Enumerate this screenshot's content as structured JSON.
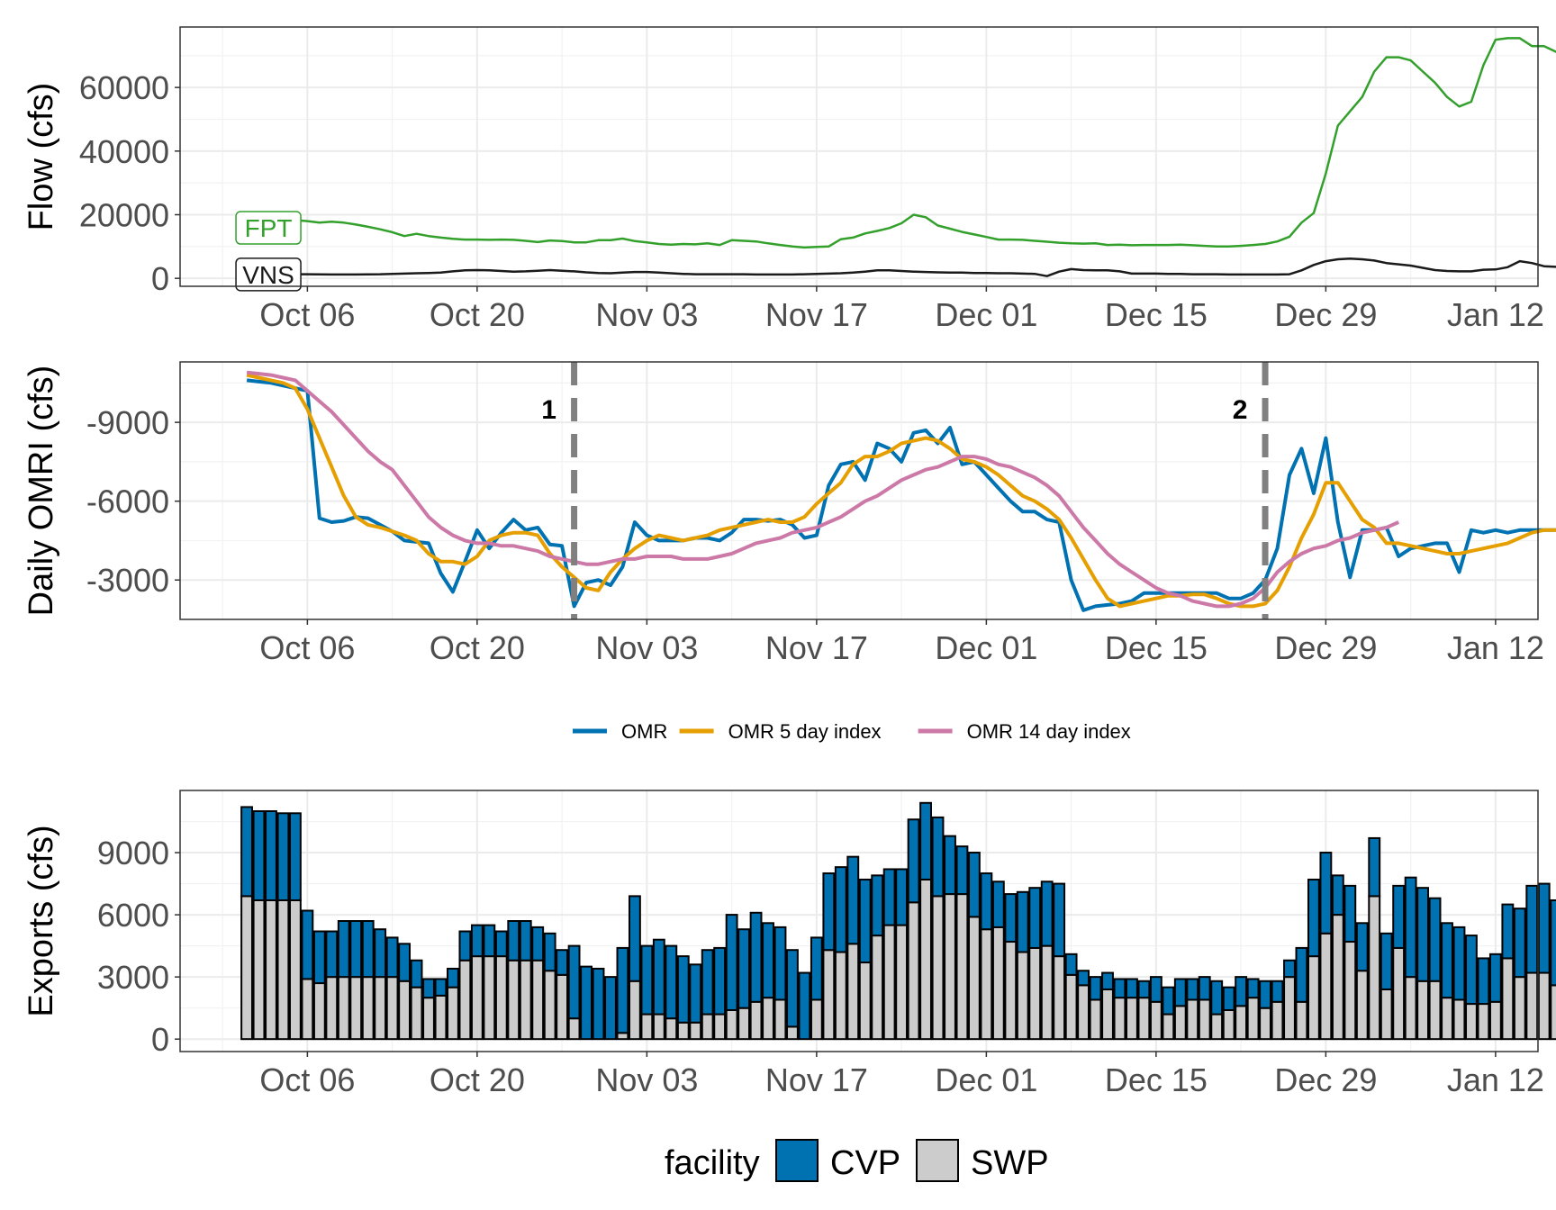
{
  "chart_data": [
    {
      "type": "line",
      "ylabel": "Flow (cfs)",
      "x_ticks": [
        "Oct 06",
        "Oct 20",
        "Nov 03",
        "Nov 17",
        "Dec 01",
        "Dec 15",
        "Dec 29",
        "Jan 12"
      ],
      "x_tick_dates": [
        "2022-10-06",
        "2022-10-20",
        "2022-11-03",
        "2022-11-17",
        "2022-12-01",
        "2022-12-15",
        "2022-12-29",
        "2023-01-12"
      ],
      "ylim": [
        -2500,
        79000
      ],
      "y_ticks": [
        0,
        20000,
        40000,
        60000
      ],
      "x_start": "2022-10-01",
      "grid": true,
      "series": [
        {
          "name": "FPT",
          "color": "#33a02c",
          "values": [
            19000,
            18800,
            18600,
            18500,
            18300,
            18000,
            17500,
            17800,
            17500,
            16900,
            16200,
            15400,
            14500,
            13300,
            14000,
            13300,
            12800,
            12400,
            12200,
            12200,
            12100,
            12200,
            12100,
            11800,
            11400,
            11900,
            11700,
            11300,
            11300,
            12000,
            12000,
            12500,
            11700,
            11300,
            10800,
            10600,
            10800,
            10700,
            11000,
            10500,
            12000,
            11800,
            11600,
            11000,
            10500,
            10000,
            9700,
            9900,
            10000,
            12300,
            12800,
            14100,
            14900,
            15800,
            17300,
            20000,
            19200,
            16600,
            15600,
            14600,
            13800,
            13000,
            12200,
            12200,
            12100,
            11800,
            11500,
            11200,
            11000,
            10900,
            11000,
            10500,
            10600,
            10400,
            10500,
            10500,
            10500,
            10600,
            10400,
            10200,
            10000,
            10000,
            10200,
            10500,
            10800,
            11600,
            13100,
            17500,
            20500,
            33000,
            48000,
            52500,
            57000,
            65000,
            69500,
            69500,
            68500,
            65000,
            61500,
            57000,
            54000,
            55500,
            67000,
            75000,
            75500,
            75500,
            73000,
            73000,
            71200,
            69500
          ]
        },
        {
          "name": "VNS",
          "color": "#1a1a1a",
          "values": [
            1500,
            1450,
            1400,
            1350,
            1300,
            1280,
            1250,
            1200,
            1200,
            1200,
            1250,
            1300,
            1400,
            1500,
            1600,
            1700,
            1800,
            2200,
            2500,
            2600,
            2500,
            2300,
            2100,
            2200,
            2400,
            2600,
            2400,
            2200,
            1900,
            1700,
            1600,
            1800,
            2000,
            2000,
            1800,
            1600,
            1400,
            1300,
            1300,
            1300,
            1300,
            1300,
            1200,
            1200,
            1200,
            1200,
            1300,
            1400,
            1500,
            1600,
            1800,
            2100,
            2500,
            2500,
            2300,
            2100,
            2000,
            1900,
            1800,
            1800,
            1700,
            1700,
            1600,
            1600,
            1500,
            1400,
            700,
            2100,
            2900,
            2600,
            2500,
            2500,
            2200,
            1500,
            1500,
            1500,
            1400,
            1400,
            1300,
            1300,
            1300,
            1200,
            1200,
            1200,
            1200,
            1200,
            1300,
            2500,
            4200,
            5400,
            6000,
            6200,
            6000,
            5600,
            4800,
            4400,
            4000,
            3300,
            2600,
            2300,
            2200,
            2200,
            2700,
            2800,
            3500,
            5400,
            4800,
            3800,
            3600,
            3500,
            3400
          ]
        }
      ]
    },
    {
      "type": "line",
      "ylabel": "Daily OMRI (cfs)",
      "x_ticks": [
        "Oct 06",
        "Oct 20",
        "Nov 03",
        "Nov 17",
        "Dec 01",
        "Dec 15",
        "Dec 29",
        "Jan 12"
      ],
      "x_tick_dates": [
        "2022-10-06",
        "2022-10-20",
        "2022-11-03",
        "2022-11-17",
        "2022-12-01",
        "2022-12-15",
        "2022-12-29",
        "2023-01-12"
      ],
      "y_reversed": true,
      "ylim": [
        -1500,
        -11300
      ],
      "y_ticks": [
        -9000,
        -6000,
        -3000
      ],
      "x_start": "2022-10-01",
      "grid": true,
      "legend_position": "bottom",
      "vlines": [
        {
          "label": "1",
          "date": "2022-10-28"
        },
        {
          "label": "2",
          "date": "2022-12-24"
        }
      ],
      "series": [
        {
          "name": "OMR",
          "color": "#0072b2",
          "values": [
            -10600,
            -10550,
            -10500,
            -10400,
            -10300,
            -10200,
            -5350,
            -5200,
            -5250,
            -5400,
            -5350,
            -5100,
            -4850,
            -4500,
            -4450,
            -4400,
            -3250,
            -2550,
            -3700,
            -4900,
            -4200,
            -4800,
            -5300,
            -4900,
            -5000,
            -4350,
            -4300,
            -2000,
            -2900,
            -3000,
            -2800,
            -3500,
            -5200,
            -4700,
            -4500,
            -4500,
            -4500,
            -4600,
            -4600,
            -4500,
            -4800,
            -5300,
            -5300,
            -5250,
            -5300,
            -5100,
            -4600,
            -4700,
            -6600,
            -7400,
            -7500,
            -6800,
            -8200,
            -8000,
            -7500,
            -8600,
            -8700,
            -8200,
            -8800,
            -7400,
            -7500,
            -7000,
            -6500,
            -6000,
            -5600,
            -5600,
            -5300,
            -5200,
            -3000,
            -1850,
            -2000,
            -2050,
            -2100,
            -2200,
            -2500,
            -2500,
            -2500,
            -2500,
            -2500,
            -2500,
            -2500,
            -2300,
            -2300,
            -2500,
            -3000,
            -4200,
            -7000,
            -8000,
            -6300,
            -8400,
            -5200,
            -3100,
            -4900,
            -4900,
            -5000,
            -3900,
            -4200,
            -4300,
            -4400,
            -4400,
            -3300,
            -4900,
            -4800,
            -4900,
            -4800,
            -4900,
            -4900,
            -4900,
            -4900,
            -4800
          ]
        },
        {
          "name": "OMR 5 day index",
          "color": "#e69f00",
          "values": [
            -10800,
            -10700,
            -10600,
            -10500,
            -10300,
            -9500,
            -8400,
            -7300,
            -6200,
            -5400,
            -5100,
            -5000,
            -4850,
            -4700,
            -4500,
            -4000,
            -3700,
            -3700,
            -3600,
            -3900,
            -4500,
            -4700,
            -4800,
            -4800,
            -4700,
            -4000,
            -3500,
            -3100,
            -2700,
            -2600,
            -3300,
            -3800,
            -4200,
            -4500,
            -4700,
            -4600,
            -4500,
            -4600,
            -4700,
            -4900,
            -5000,
            -5100,
            -5200,
            -5300,
            -5200,
            -5200,
            -5400,
            -5900,
            -6300,
            -6700,
            -7400,
            -7700,
            -7700,
            -7900,
            -8200,
            -8300,
            -8400,
            -8300,
            -8000,
            -7600,
            -7500,
            -7300,
            -7000,
            -6600,
            -6200,
            -6000,
            -5700,
            -5300,
            -4600,
            -3800,
            -3000,
            -2300,
            -2000,
            -2100,
            -2200,
            -2300,
            -2400,
            -2400,
            -2450,
            -2450,
            -2300,
            -2100,
            -2000,
            -2000,
            -2100,
            -2600,
            -3500,
            -4600,
            -5500,
            -6700,
            -6700,
            -6000,
            -5300,
            -5000,
            -4400,
            -4400,
            -4300,
            -4200,
            -4100,
            -4000,
            -4000,
            -4100,
            -4200,
            -4300,
            -4400,
            -4600,
            -4800,
            -4900,
            -4900,
            -4900
          ]
        },
        {
          "name": "OMR 14 day index",
          "color": "#cc79a7",
          "values": [
            -10900,
            -10850,
            -10800,
            -10700,
            -10600,
            -10200,
            -9800,
            -9400,
            -8900,
            -8400,
            -7900,
            -7500,
            -7200,
            -6600,
            -6000,
            -5400,
            -5000,
            -4700,
            -4500,
            -4400,
            -4400,
            -4300,
            -4300,
            -4200,
            -4100,
            -3900,
            -3800,
            -3700,
            -3600,
            -3600,
            -3700,
            -3800,
            -3800,
            -3900,
            -3900,
            -3900,
            -3800,
            -3800,
            -3800,
            -3900,
            -4000,
            -4200,
            -4400,
            -4500,
            -4600,
            -4800,
            -4900,
            -5000,
            -5200,
            -5400,
            -5700,
            -6000,
            -6200,
            -6500,
            -6800,
            -7000,
            -7200,
            -7300,
            -7500,
            -7700,
            -7700,
            -7600,
            -7400,
            -7300,
            -7100,
            -6900,
            -6600,
            -6200,
            -5600,
            -5000,
            -4500,
            -4000,
            -3600,
            -3300,
            -3000,
            -2700,
            -2500,
            -2400,
            -2200,
            -2100,
            -2000,
            -2000,
            -2100,
            -2300,
            -2700,
            -3300,
            -3700,
            -4000,
            -4200,
            -4300,
            -4500,
            -4600,
            -4800,
            -4900,
            -5000,
            -5200
          ]
        }
      ]
    },
    {
      "type": "bar",
      "stacked": true,
      "ylabel": "Exports (cfs)",
      "x_ticks": [
        "Oct 06",
        "Oct 20",
        "Nov 03",
        "Nov 17",
        "Dec 01",
        "Dec 15",
        "Dec 29",
        "Jan 12"
      ],
      "x_tick_dates": [
        "2022-10-06",
        "2022-10-20",
        "2022-11-03",
        "2022-11-17",
        "2022-12-01",
        "2022-12-15",
        "2022-12-29",
        "2023-01-12"
      ],
      "ylim": [
        -600,
        12000
      ],
      "y_ticks": [
        0,
        3000,
        6000,
        9000
      ],
      "x_start": "2022-10-01",
      "grid": true,
      "legend_title": "facility",
      "legend_position": "bottom",
      "series": [
        {
          "name": "CVP",
          "color": "#0072b2",
          "values": [
            4300,
            4300,
            4300,
            4200,
            4200,
            3300,
            2500,
            2200,
            2700,
            2700,
            2700,
            2300,
            1900,
            1800,
            1300,
            900,
            800,
            900,
            1400,
            1500,
            1500,
            1200,
            1900,
            1900,
            1600,
            1800,
            1200,
            3500,
            3500,
            3400,
            3000,
            4100,
            4100,
            3300,
            3600,
            3500,
            3200,
            2800,
            3100,
            3200,
            4600,
            3800,
            4300,
            3600,
            3500,
            3700,
            3200,
            3000,
            3700,
            4100,
            4200,
            4000,
            2900,
            2700,
            2700,
            4000,
            3700,
            3800,
            2800,
            2300,
            3100,
            2700,
            2200,
            2300,
            2900,
            2900,
            3100,
            3500,
            1000,
            700,
            1100,
            800,
            900,
            900,
            800,
            1200,
            1300,
            1300,
            1000,
            1100,
            1600,
            1100,
            1400,
            900,
            1300,
            1000,
            800,
            2600,
            3700,
            3900,
            1900,
            2700,
            2300,
            2800,
            2700,
            3000,
            4800,
            4500,
            4000,
            3600,
            3500,
            3300,
            2200,
            2300,
            2600,
            3300,
            4200,
            4300,
            4100,
            3900
          ]
        },
        {
          "name": "SWP",
          "color": "#cccccc",
          "values": [
            6900,
            6700,
            6700,
            6700,
            6700,
            2900,
            2700,
            3000,
            3000,
            3000,
            3000,
            3000,
            3000,
            2800,
            2500,
            2000,
            2100,
            2500,
            3800,
            4000,
            4000,
            4000,
            3800,
            3800,
            3800,
            3300,
            3100,
            1000,
            0,
            0,
            0,
            300,
            2800,
            1200,
            1200,
            1000,
            800,
            800,
            1200,
            1200,
            1400,
            1500,
            1800,
            2000,
            1900,
            600,
            0,
            1900,
            4300,
            4200,
            4600,
            3700,
            5000,
            5500,
            5500,
            6600,
            7700,
            6900,
            7000,
            7000,
            5900,
            5300,
            5400,
            4700,
            4200,
            4400,
            4500,
            4000,
            3100,
            2600,
            1900,
            2400,
            2000,
            2000,
            2000,
            1800,
            1200,
            1600,
            1900,
            1900,
            1200,
            1400,
            1600,
            2000,
            1500,
            1800,
            3000,
            1800,
            4000,
            5100,
            6000,
            4700,
            3300,
            6900,
            2400,
            4400,
            3000,
            2800,
            2800,
            2000,
            1900,
            1700,
            1700,
            1800,
            3900,
            3000,
            3200,
            3200,
            2600,
            2600
          ]
        }
      ]
    }
  ]
}
